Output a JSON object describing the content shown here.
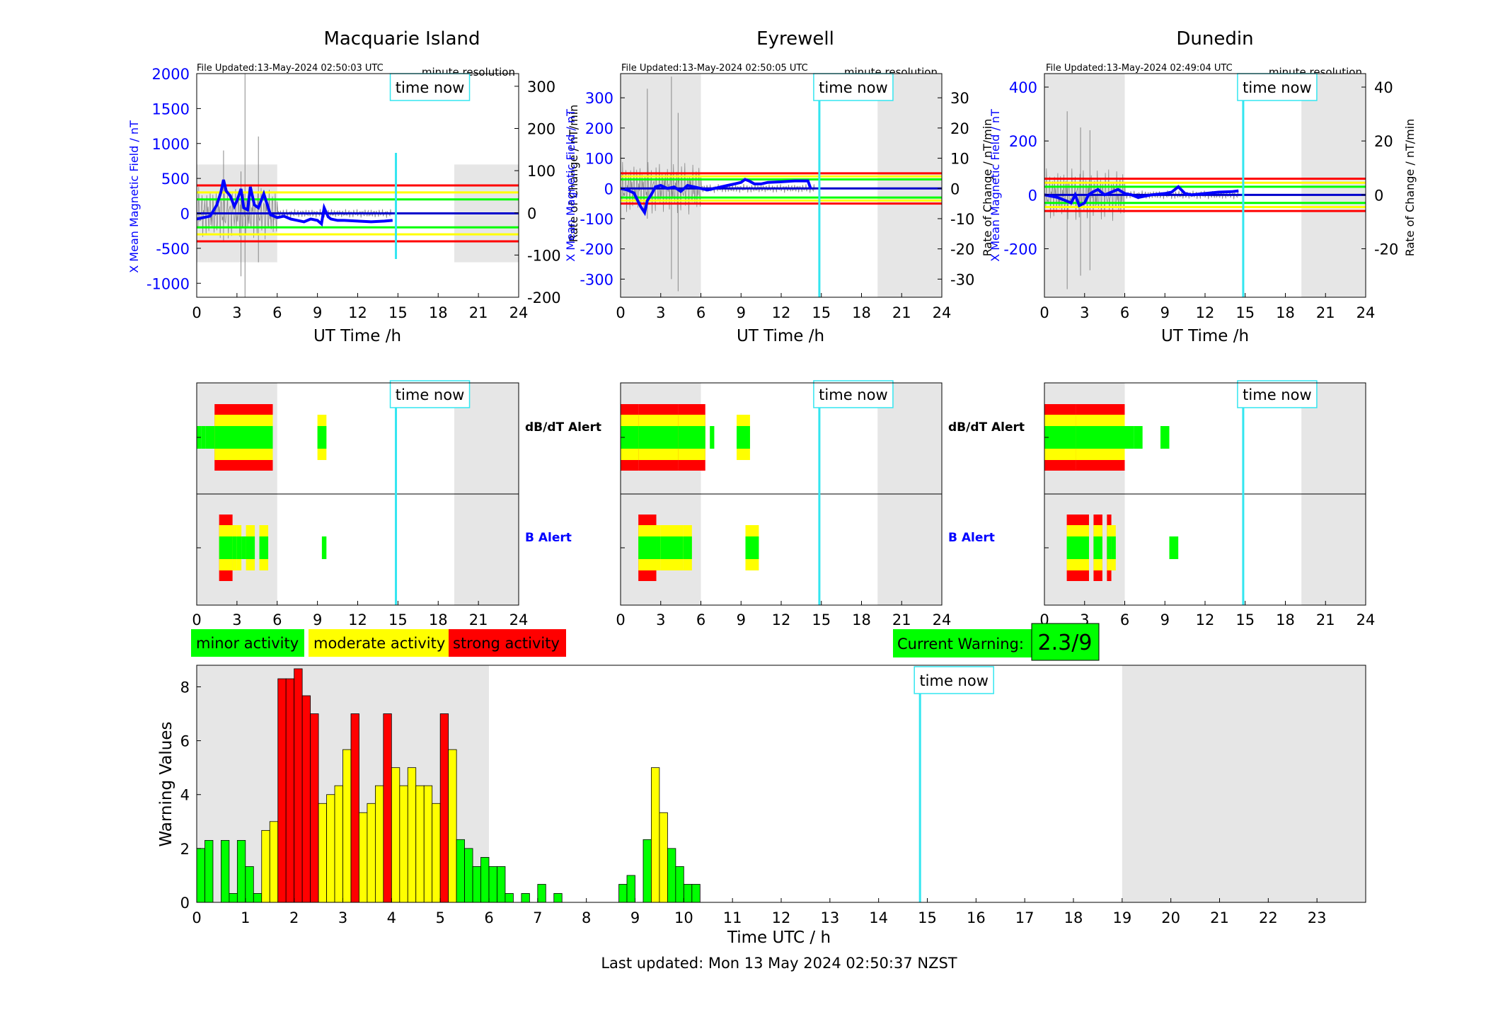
{
  "window": {
    "last_updated": "Last updated: Mon 13 May 2024 02:50:37 NZST"
  },
  "colors": {
    "blue": "#0000ff",
    "cyan": "#33e6f0",
    "green": "#00ff00",
    "yellow": "#ffff00",
    "red": "#ff0000",
    "shade": "#e6e6e6",
    "trace": "#888888"
  },
  "common": {
    "xlabel": "UT Time /h",
    "time_now_label": "time now",
    "resolution_label": "minute resolution",
    "ylabel_left": "X Mean Magnetic Field / nT",
    "ylabel_right": "Rate of Change / nT/min",
    "db_dt_alert_label": "dB/dT Alert",
    "b_alert_label": "B Alert",
    "x_ticks": [
      0,
      3,
      6,
      9,
      12,
      15,
      18,
      21,
      24
    ],
    "time_now_h": 14.85,
    "night_shade_h": [
      [
        0,
        6
      ],
      [
        19.2,
        24
      ]
    ]
  },
  "legend": {
    "minor": "minor activity",
    "moderate": "moderate activity",
    "strong": "strong activity"
  },
  "current_warning": {
    "label": "Current Warning:",
    "value": "2.3/9"
  },
  "chart_data": [
    {
      "type": "line",
      "title": "Macquarie Island",
      "file_updated": "File Updated:13-May-2024 02:50:03 UTC",
      "xlim": [
        0,
        24
      ],
      "ylim": [
        -1200,
        2000
      ],
      "y_ticks": [
        -1000,
        -500,
        0,
        500,
        1000,
        1500,
        2000
      ],
      "y2lim": [
        -200,
        330
      ],
      "y2_ticks": [
        -200,
        -100,
        0,
        100,
        200,
        300
      ],
      "thresholds": [
        {
          "value": 400,
          "color": "red"
        },
        {
          "value": 300,
          "color": "yellow"
        },
        {
          "value": 200,
          "color": "green"
        },
        {
          "value": -200,
          "color": "green"
        },
        {
          "value": -300,
          "color": "yellow"
        },
        {
          "value": -400,
          "color": "red"
        }
      ],
      "shade_ylim": [
        -700,
        700
      ],
      "series": [
        {
          "x": [
            0,
            0.5,
            1,
            1.5,
            1.8,
            2,
            2.2,
            2.5,
            2.8,
            3,
            3.3,
            3.5,
            3.8,
            4,
            4.3,
            4.6,
            5,
            5.5,
            6,
            6.5,
            7,
            7.5,
            8,
            8.5,
            9,
            9.3,
            9.5,
            9.8,
            10,
            10.5,
            11,
            12,
            13,
            14,
            14.6
          ],
          "y": [
            -80,
            -60,
            -40,
            120,
            300,
            480,
            320,
            250,
            100,
            180,
            350,
            80,
            50,
            380,
            120,
            80,
            280,
            -20,
            -60,
            -40,
            -80,
            -100,
            -120,
            -80,
            -100,
            -150,
            80,
            -50,
            -80,
            -100,
            -100,
            -110,
            -120,
            -110,
            -100
          ]
        }
      ],
      "spikes": [
        {
          "x": 3.6,
          "min": -1200,
          "max": 2000
        },
        {
          "x": 2,
          "min": -400,
          "max": 900
        },
        {
          "x": 4.6,
          "min": -700,
          "max": 1100
        },
        {
          "x": 3.3,
          "min": -900,
          "max": 600
        }
      ]
    },
    {
      "type": "line",
      "title": "Eyrewell",
      "file_updated": "File Updated:13-May-2024 02:50:05 UTC",
      "xlim": [
        0,
        24
      ],
      "ylim": [
        -360,
        380
      ],
      "y_ticks": [
        -300,
        -200,
        -100,
        0,
        100,
        200,
        300
      ],
      "y2lim": [
        -36,
        38
      ],
      "y2_ticks": [
        -30,
        -20,
        -10,
        0,
        10,
        20,
        30
      ],
      "thresholds": [
        {
          "value": 50,
          "color": "red"
        },
        {
          "value": 40,
          "color": "yellow"
        },
        {
          "value": 30,
          "color": "green"
        },
        {
          "value": -30,
          "color": "green"
        },
        {
          "value": -40,
          "color": "yellow"
        },
        {
          "value": -50,
          "color": "red"
        }
      ],
      "shade_ylim": [
        -360,
        380
      ],
      "series": [
        {
          "x": [
            0,
            0.5,
            1,
            1.5,
            1.8,
            2,
            2.3,
            2.6,
            3,
            3.5,
            4,
            4.5,
            5,
            5.5,
            6,
            6.5,
            7,
            7.5,
            8,
            8.5,
            9,
            9.3,
            9.6,
            10,
            10.5,
            11,
            12,
            13,
            14,
            14.2
          ],
          "y": [
            0,
            -5,
            -15,
            -60,
            -80,
            -40,
            -20,
            5,
            10,
            0,
            5,
            -10,
            10,
            5,
            0,
            -5,
            0,
            5,
            10,
            15,
            20,
            30,
            25,
            15,
            15,
            20,
            22,
            25,
            25,
            0
          ]
        }
      ],
      "spikes": [
        {
          "x": 3.8,
          "min": -300,
          "max": 370
        },
        {
          "x": 2,
          "min": -100,
          "max": 330
        },
        {
          "x": 4.3,
          "min": -340,
          "max": 250
        }
      ]
    },
    {
      "type": "line",
      "title": "Dunedin",
      "file_updated": "File Updated:13-May-2024 02:49:04 UTC",
      "xlim": [
        0,
        24
      ],
      "ylim": [
        -380,
        450
      ],
      "y_ticks": [
        -200,
        0,
        200,
        400
      ],
      "y2lim": [
        -38,
        45
      ],
      "y2_ticks": [
        -20,
        0,
        20,
        40
      ],
      "thresholds": [
        {
          "value": 60,
          "color": "red"
        },
        {
          "value": 45,
          "color": "yellow"
        },
        {
          "value": 30,
          "color": "green"
        },
        {
          "value": -30,
          "color": "green"
        },
        {
          "value": -45,
          "color": "yellow"
        },
        {
          "value": -60,
          "color": "red"
        }
      ],
      "shade_ylim": [
        -380,
        450
      ],
      "series": [
        {
          "x": [
            0,
            0.5,
            1,
            1.5,
            2,
            2.3,
            2.6,
            3,
            3.3,
            3.6,
            4,
            4.5,
            5,
            5.5,
            6,
            6.5,
            7,
            8,
            9,
            9.5,
            10,
            10.5,
            11,
            12,
            13,
            14,
            14.5
          ],
          "y": [
            0,
            -5,
            -10,
            -20,
            -30,
            0,
            -40,
            -30,
            0,
            10,
            20,
            0,
            10,
            20,
            5,
            0,
            -10,
            0,
            5,
            10,
            30,
            5,
            0,
            5,
            10,
            12,
            15
          ]
        }
      ],
      "spikes": [
        {
          "x": 1.7,
          "min": -350,
          "max": 310
        },
        {
          "x": 2.7,
          "min": -300,
          "max": 250
        },
        {
          "x": 3.4,
          "min": -280,
          "max": 240
        }
      ]
    },
    {
      "type": "bar",
      "title": "",
      "xlabel": "Time UTC / h",
      "ylabel": "Warning Values",
      "xlim": [
        0,
        24
      ],
      "ylim": [
        0,
        8.8
      ],
      "y_ticks": [
        0,
        2,
        4,
        6,
        8
      ],
      "x_ticks": [
        0,
        1,
        2,
        3,
        4,
        5,
        6,
        7,
        8,
        9,
        10,
        11,
        12,
        13,
        14,
        15,
        16,
        17,
        18,
        19,
        20,
        21,
        22,
        23
      ],
      "time_now_h": 14.85,
      "shade": [
        [
          0,
          6
        ],
        [
          19,
          24
        ]
      ],
      "bars": [
        {
          "x": 0.0,
          "v": 2.0
        },
        {
          "x": 0.167,
          "v": 2.3
        },
        {
          "x": 0.5,
          "v": 2.3
        },
        {
          "x": 0.667,
          "v": 0.33
        },
        {
          "x": 0.833,
          "v": 2.3
        },
        {
          "x": 1.0,
          "v": 1.33
        },
        {
          "x": 1.167,
          "v": 0.33
        },
        {
          "x": 1.333,
          "v": 2.67
        },
        {
          "x": 1.5,
          "v": 3.0
        },
        {
          "x": 1.667,
          "v": 8.3
        },
        {
          "x": 1.833,
          "v": 8.3
        },
        {
          "x": 2.0,
          "v": 8.67
        },
        {
          "x": 2.167,
          "v": 7.67
        },
        {
          "x": 2.333,
          "v": 7.0
        },
        {
          "x": 2.5,
          "v": 3.67
        },
        {
          "x": 2.667,
          "v": 4.0
        },
        {
          "x": 2.833,
          "v": 4.33
        },
        {
          "x": 3.0,
          "v": 5.67
        },
        {
          "x": 3.167,
          "v": 7.0
        },
        {
          "x": 3.333,
          "v": 3.33
        },
        {
          "x": 3.5,
          "v": 3.67
        },
        {
          "x": 3.667,
          "v": 4.33
        },
        {
          "x": 3.833,
          "v": 7.0
        },
        {
          "x": 4.0,
          "v": 5.0
        },
        {
          "x": 4.167,
          "v": 4.33
        },
        {
          "x": 4.333,
          "v": 5.0
        },
        {
          "x": 4.5,
          "v": 4.33
        },
        {
          "x": 4.667,
          "v": 4.33
        },
        {
          "x": 4.833,
          "v": 3.67
        },
        {
          "x": 5.0,
          "v": 7.0
        },
        {
          "x": 5.167,
          "v": 5.67
        },
        {
          "x": 5.333,
          "v": 2.33
        },
        {
          "x": 5.5,
          "v": 2.0
        },
        {
          "x": 5.667,
          "v": 1.33
        },
        {
          "x": 5.833,
          "v": 1.67
        },
        {
          "x": 6.0,
          "v": 1.33
        },
        {
          "x": 6.167,
          "v": 1.33
        },
        {
          "x": 6.333,
          "v": 0.33
        },
        {
          "x": 6.667,
          "v": 0.33
        },
        {
          "x": 7.0,
          "v": 0.67
        },
        {
          "x": 7.333,
          "v": 0.33
        },
        {
          "x": 8.667,
          "v": 0.67
        },
        {
          "x": 8.833,
          "v": 1.0
        },
        {
          "x": 9.167,
          "v": 2.33
        },
        {
          "x": 9.333,
          "v": 5.0
        },
        {
          "x": 9.5,
          "v": 3.33
        },
        {
          "x": 9.667,
          "v": 2.0
        },
        {
          "x": 9.833,
          "v": 1.33
        },
        {
          "x": 10.0,
          "v": 0.67
        },
        {
          "x": 10.167,
          "v": 0.67
        }
      ]
    }
  ],
  "alerts": [
    {
      "db": [
        [
          0,
          0.33,
          1
        ],
        [
          0.33,
          0.67,
          1
        ],
        [
          0.67,
          1.33,
          1
        ],
        [
          1.33,
          5.67,
          3
        ],
        [
          9,
          9.67,
          2
        ]
      ],
      "b": [
        [
          1.67,
          2.67,
          3
        ],
        [
          2.67,
          3,
          2
        ],
        [
          3,
          3.33,
          2
        ],
        [
          3.33,
          3.67,
          1
        ],
        [
          3.67,
          4.33,
          2
        ],
        [
          4.67,
          5.33,
          2
        ],
        [
          9.33,
          9.67,
          1
        ]
      ]
    },
    {
      "db": [
        [
          0,
          1.33,
          3
        ],
        [
          1.33,
          4.33,
          3
        ],
        [
          4.33,
          6.33,
          3
        ],
        [
          6.67,
          7,
          1
        ],
        [
          8.67,
          9.67,
          2
        ]
      ],
      "b": [
        [
          1.33,
          2.67,
          3
        ],
        [
          2.67,
          3,
          2
        ],
        [
          3,
          4.67,
          2
        ],
        [
          4.67,
          5.33,
          2
        ],
        [
          9.33,
          10.33,
          2
        ]
      ]
    },
    {
      "db": [
        [
          0,
          2.33,
          3
        ],
        [
          2.33,
          6,
          3
        ],
        [
          6,
          6.67,
          1
        ],
        [
          6.67,
          7.33,
          1
        ],
        [
          8.67,
          9.33,
          1
        ]
      ],
      "b": [
        [
          1.67,
          3.33,
          3
        ],
        [
          3.67,
          4.33,
          3
        ],
        [
          4.67,
          5,
          3
        ],
        [
          5,
          5.33,
          2
        ],
        [
          9.33,
          10,
          1
        ]
      ]
    }
  ]
}
